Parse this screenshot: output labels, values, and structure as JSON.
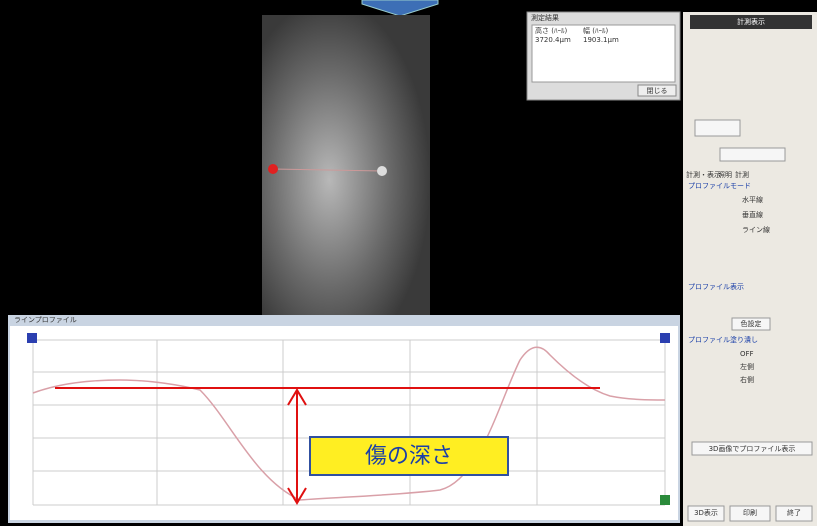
{
  "popup": {
    "title": "測定結果",
    "headers": [
      "高さ (ﾊｰﾙ)",
      "幅 (ﾊｰﾙ)"
    ],
    "values": [
      "3720.4μm",
      "1903.1μm"
    ],
    "button": "閉じる"
  },
  "chart_panel": {
    "title": "ラインプロファイル",
    "annotation": "傷の深さ"
  },
  "side_panel": {
    "title": "計測表示",
    "tabs": [
      "計測・表示",
      "照明",
      "計測"
    ],
    "profile_mode": "プロファイルモード",
    "modes": [
      "水平線",
      "垂直線",
      "ライン線"
    ],
    "profile_display": "プロファイル表示",
    "display_button": "色設定",
    "profile_fill": "プロファイル塗り潰し",
    "fill_modes": [
      "OFF",
      "左側",
      "右側"
    ],
    "save_button": "3D画像でプロファイル表示",
    "bottom_buttons": [
      "3D表示",
      "印刷",
      "終了"
    ]
  }
}
